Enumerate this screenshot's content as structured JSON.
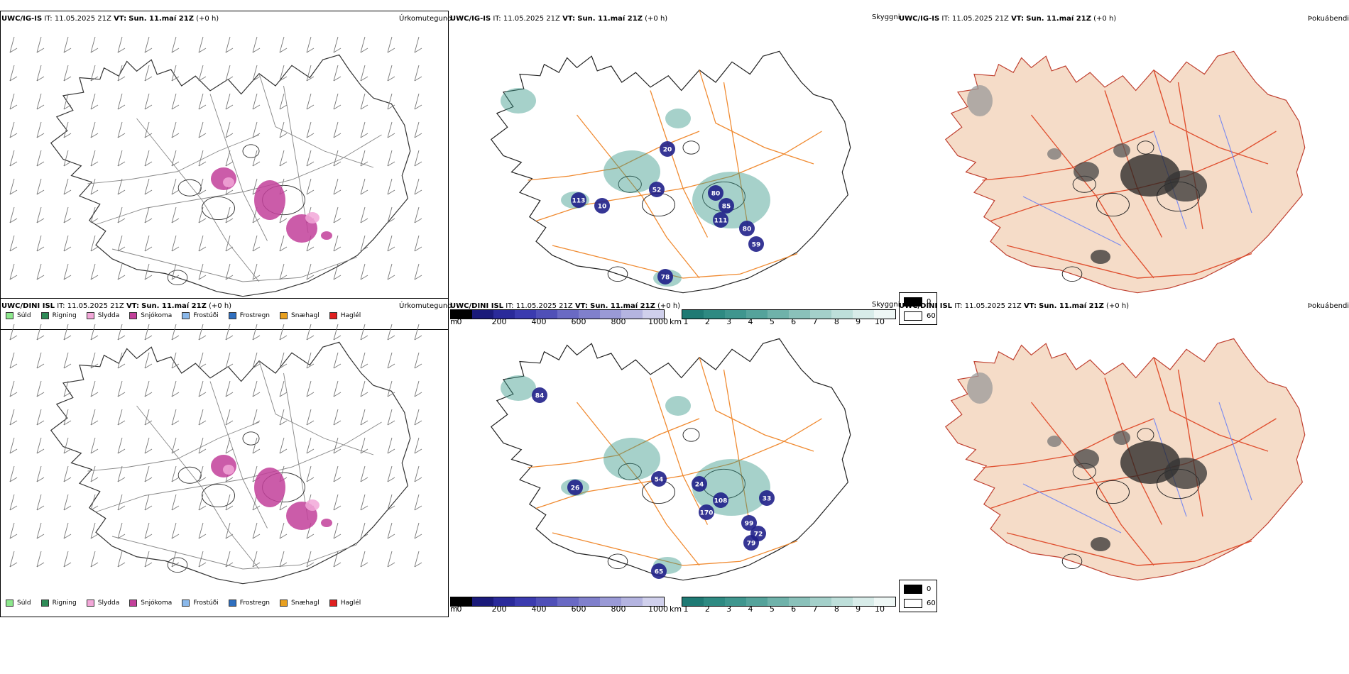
{
  "rows": [
    {
      "model": "UWC/IG-IS",
      "it_label": "IT:",
      "it_value": "11.05.2025 21Z",
      "vt_label": "VT:",
      "vt_value": "Sun. 11.maí 21Z",
      "lead": "(+0 h)",
      "labels": [
        "113",
        "52",
        "10",
        "80",
        "85",
        "111",
        "80",
        "59",
        "78",
        "20"
      ]
    },
    {
      "model": "UWC/DINI ISL",
      "it_label": "IT:",
      "it_value": "11.05.2025 21Z",
      "vt_label": "VT:",
      "vt_value": "Sun. 11.maí 21Z",
      "lead": "(+0 h)",
      "labels": [
        "26",
        "54",
        "24",
        "108",
        "170",
        "33",
        "99",
        "72",
        "79",
        "65",
        "84"
      ]
    }
  ],
  "panel_titles": {
    "precip": "Úrkomutegund",
    "visibility": "Skyggni",
    "fog": "Þokuábendi"
  },
  "precip_legend": [
    {
      "label": "Súld",
      "color": "#8de88d"
    },
    {
      "label": "Rigning",
      "color": "#2e8b57"
    },
    {
      "label": "Slydda",
      "color": "#f2a7d8"
    },
    {
      "label": "Snjókoma",
      "color": "#c2409a"
    },
    {
      "label": "Frostúði",
      "color": "#8ab8ea"
    },
    {
      "label": "Frostregn",
      "color": "#2f6fbf"
    },
    {
      "label": "Snæhagl",
      "color": "#e8a020"
    },
    {
      "label": "Haglél",
      "color": "#e02020"
    }
  ],
  "ceiling_bar": {
    "unit": "m",
    "ticks": [
      "0",
      "200",
      "400",
      "600",
      "800",
      "1000"
    ],
    "colors": [
      "#000000",
      "#1a1a7a",
      "#2a2a9a",
      "#3b3baf",
      "#5050b8",
      "#6a6ac4",
      "#8080cc",
      "#9a9ad6",
      "#b4b4e0",
      "#d0d0ec"
    ]
  },
  "visibility_bar": {
    "unit": "km",
    "ticks": [
      "1",
      "2",
      "3",
      "4",
      "5",
      "6",
      "7",
      "8",
      "9",
      "10"
    ],
    "colors": [
      "#1f7a74",
      "#2e8a82",
      "#3f968e",
      "#55a39b",
      "#6fb2aa",
      "#8ac1ba",
      "#a4d0ca",
      "#bedfda",
      "#d8ece9",
      "#eef7f5"
    ]
  },
  "fog_legend": [
    {
      "label": "0",
      "color": "#000000"
    },
    {
      "label": "60",
      "color": "#ffffff"
    }
  ],
  "colors": {
    "land_fog": "#f5dcc8",
    "roads_orange": "#f08a30",
    "roads_red": "#e05030",
    "rivers": "#7a8af0",
    "ceiling_blue": "#20208a",
    "vis_teal": "#3a9a8a"
  }
}
